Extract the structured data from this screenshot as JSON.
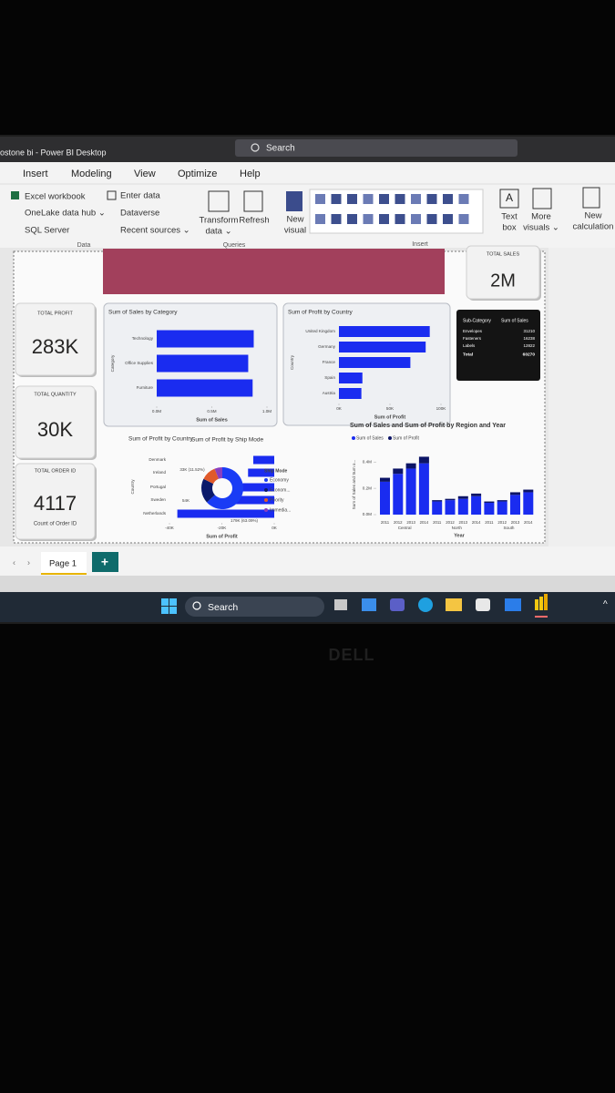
{
  "window": {
    "title": "ostone bi - Power BI Desktop",
    "search": "Search"
  },
  "ribbon": {
    "tabs": [
      "Insert",
      "Modeling",
      "View",
      "Optimize",
      "Help"
    ],
    "data_items": [
      "Excel workbook",
      "OneLake data hub ⌄",
      "SQL Server",
      "Enter data",
      "Dataverse",
      "Recent sources ⌄"
    ],
    "data_label": "Data",
    "transform": [
      "Transform",
      "data ⌄"
    ],
    "refresh": "Refresh",
    "queries_label": "Queries",
    "new_visual": [
      "New",
      "visual"
    ],
    "insert_label": "Insert",
    "text_box": [
      "Text",
      "box"
    ],
    "more_visuals": [
      "More",
      "visuals ⌄"
    ],
    "new_calculation": [
      "New",
      "calculation"
    ]
  },
  "cards": [
    {
      "title": "TOTAL SALES",
      "value": "2M"
    },
    {
      "title": "TOTAL PROFIT",
      "value": "283K"
    },
    {
      "title": "TOTAL QUANTITY",
      "value": "30K"
    },
    {
      "title": "TOTAL ORDER ID",
      "value": "4117",
      "subtitle": "Count of Order ID"
    }
  ],
  "sales_by_category": {
    "type": "bar",
    "title": "Sum of Sales by Category",
    "x_label": "Sum of Sales",
    "y_label": "Category",
    "categories": [
      "Technology",
      "Office Supplies",
      "Furniture"
    ],
    "values": [
      0.88,
      0.83,
      0.87
    ],
    "color": "#1a2cf0",
    "xlim": [
      0,
      1
    ],
    "xticks": [
      {
        "value": 0,
        "label": "0.0M"
      },
      {
        "value": 0.5,
        "label": "0.5M"
      },
      {
        "value": 1,
        "label": "1.0M"
      }
    ]
  },
  "profit_by_country": {
    "type": "bar",
    "title": "Sum of Profit by Country",
    "x_label": "Sum of Profit",
    "y_label": "Country",
    "categories": [
      "United Kingdom",
      "Germany",
      "France",
      "Spain",
      "Austria"
    ],
    "values": [
      89,
      85,
      70,
      23,
      22
    ],
    "color": "#1a2cf0",
    "xlim": [
      0,
      100
    ],
    "xticks": [
      {
        "value": 0,
        "label": "0K"
      },
      {
        "value": 50,
        "label": "50K"
      },
      {
        "value": 100,
        "label": "100K"
      }
    ]
  },
  "subcategory_table": {
    "columns": [
      "Sub-Category",
      "Sum of Sales"
    ],
    "rows": [
      [
        "Envelopes",
        "31210"
      ],
      [
        "Fasteners",
        "16238"
      ],
      [
        "Labels",
        "12822"
      ]
    ],
    "total": [
      "Total",
      "60270"
    ]
  },
  "loss_by_country": {
    "type": "bar",
    "title": "Sum of Profit by Country",
    "x_label": "Sum of Profit",
    "y_label": "Country",
    "categories": [
      "Denmark",
      "Ireland",
      "Portugal",
      "Sweden",
      "Netherlands"
    ],
    "values": [
      -8,
      -10,
      -12,
      -15,
      -37
    ],
    "color": "#1a2cf0",
    "xlim": [
      -40,
      0
    ],
    "xticks": [
      {
        "value": -40,
        "label": "-40K"
      },
      {
        "value": -20,
        "label": "-20K"
      },
      {
        "value": 0,
        "label": "0K"
      }
    ]
  },
  "profit_by_ship_mode": {
    "type": "donut",
    "title": "Sum of Profit by Ship Mode",
    "legend_title": "Ship Mode",
    "categories": [
      "Economy",
      "Econom...",
      "Priority",
      "Immedia..."
    ],
    "values": [
      179,
      54,
      33,
      17
    ],
    "value_labels": [
      "179K (63.09%)",
      "54K",
      "33K (11.52%)",
      null
    ],
    "colors": [
      "#1a3cf5",
      "#0c1a6b",
      "#e05a2b",
      "#8a3fbf"
    ]
  },
  "sales_profit_by_region_year": {
    "type": "stacked_column",
    "title": "Sum of Sales and Sum of Profit by Region and Year",
    "x_label": "Year",
    "y_label": "Sum of Sales and Sum o...",
    "categories": [
      "2011",
      "2012",
      "2013",
      "2014",
      "2011",
      "2012",
      "2013",
      "2014",
      "2011",
      "2012",
      "2013",
      "2014"
    ],
    "groups": [
      "Central",
      "North",
      "South"
    ],
    "series": [
      {
        "name": "Sum of Sales",
        "color": "#1a2cf0",
        "values": [
          0.25,
          0.31,
          0.35,
          0.39,
          0.1,
          0.11,
          0.12,
          0.14,
          0.09,
          0.1,
          0.15,
          0.17
        ]
      },
      {
        "name": "Sum of Profit",
        "color": "#0c1466",
        "values": [
          0.03,
          0.04,
          0.04,
          0.05,
          0.01,
          0.01,
          0.02,
          0.02,
          0.01,
          0.01,
          0.02,
          0.02
        ]
      }
    ],
    "ylim": [
      0,
      0.45
    ],
    "yticks": [
      {
        "value": 0,
        "label": "0.0M"
      },
      {
        "value": 0.2,
        "label": "0.2M"
      },
      {
        "value": 0.4,
        "label": "0.4M"
      }
    ]
  },
  "pages": [
    "Page 1"
  ],
  "taskbar": {
    "search": "Search"
  },
  "laptop_brand": "DELL"
}
